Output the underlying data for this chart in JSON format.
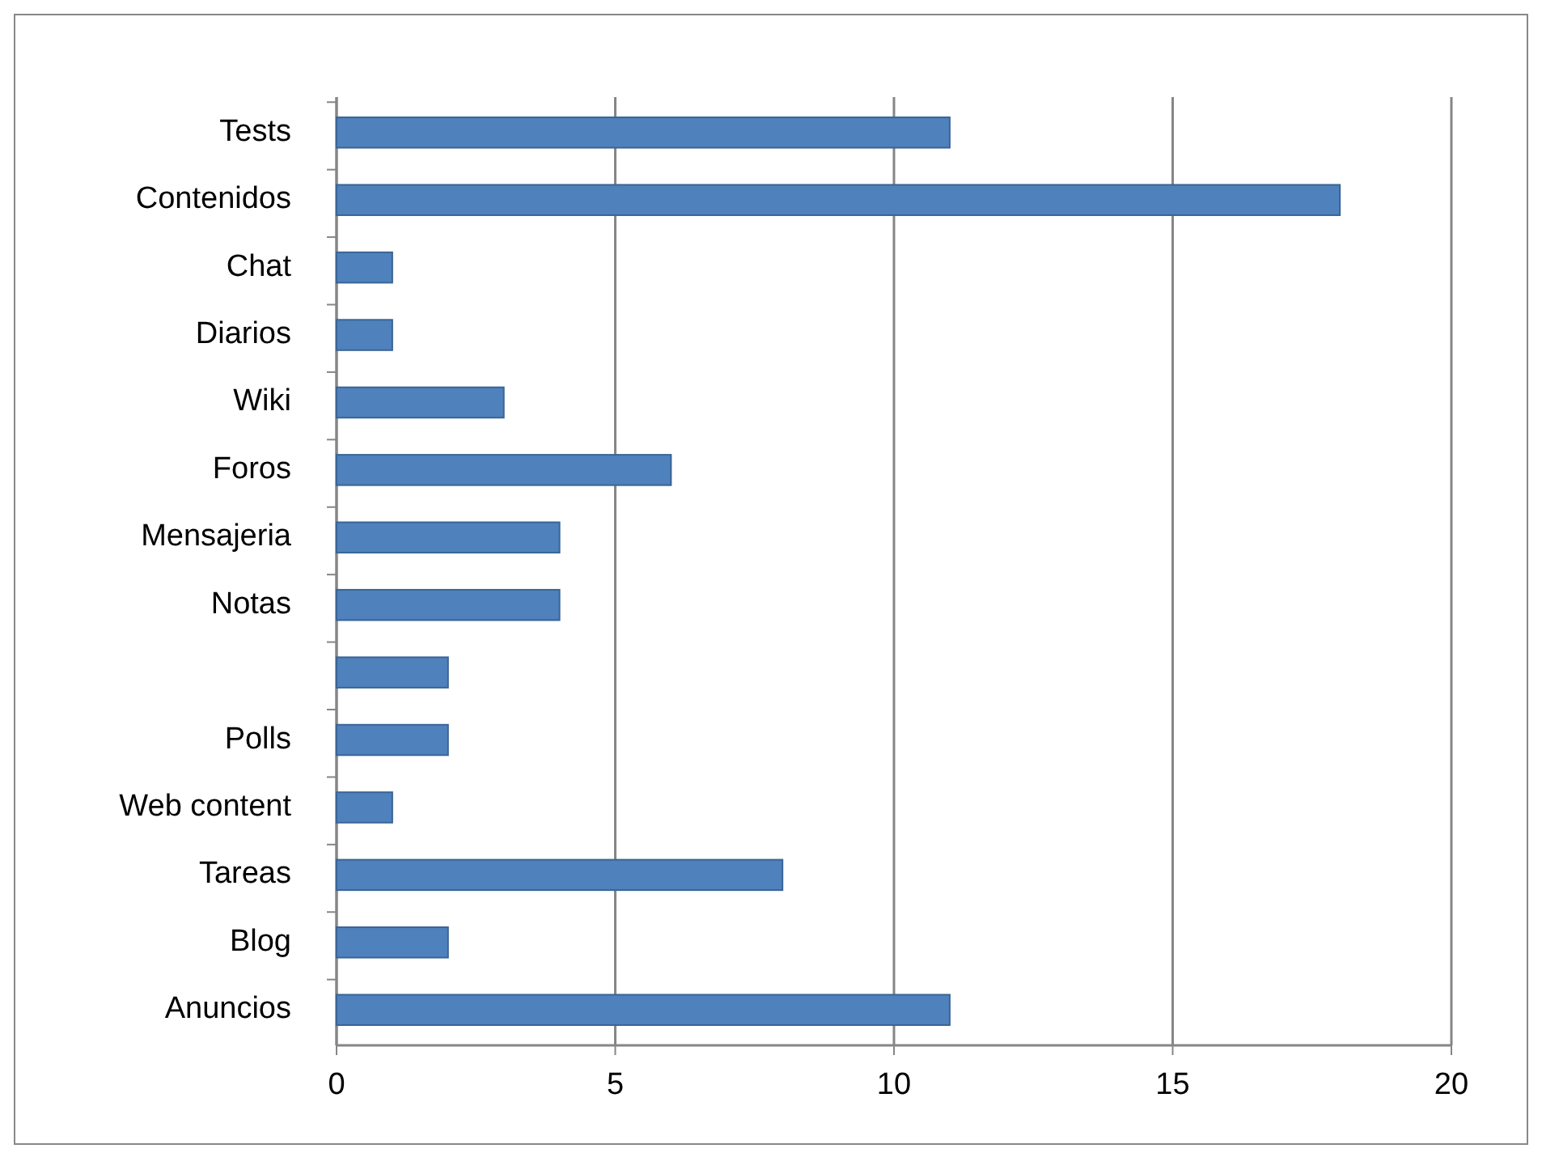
{
  "chart_data": {
    "type": "bar",
    "orientation": "horizontal",
    "categories": [
      "Tests",
      "Contenidos",
      "Chat",
      "Diarios",
      "Wiki",
      "Foros",
      "Mensajeria",
      "Notas",
      null,
      "Polls",
      "Web content",
      "Tareas",
      "Blog",
      "Anuncios"
    ],
    "values": [
      11,
      18,
      1,
      1,
      3,
      6,
      4,
      4,
      2,
      2,
      1,
      8,
      2,
      11
    ],
    "color": "#4f81bd",
    "xlim": [
      0,
      20
    ],
    "xticks": [
      0,
      5,
      10,
      15,
      20
    ],
    "grid": "x"
  }
}
